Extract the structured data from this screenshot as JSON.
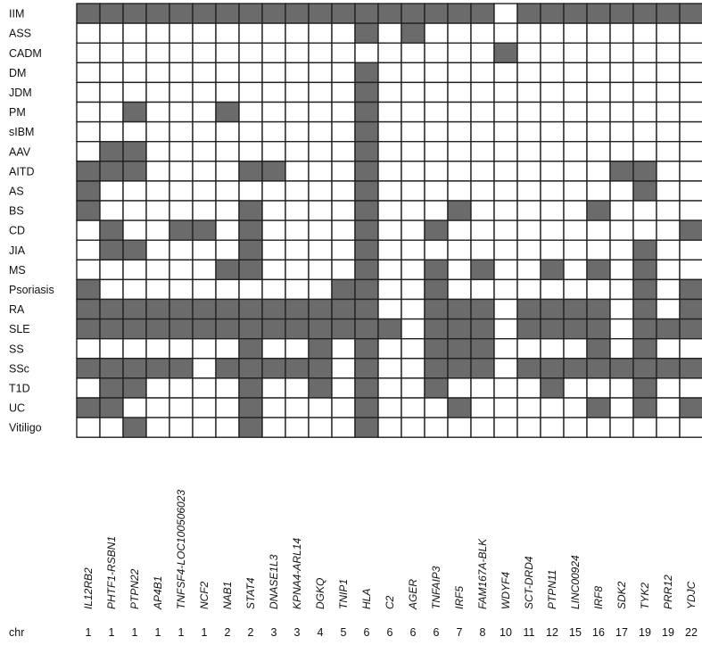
{
  "chart_data": {
    "type": "heatmap",
    "rows": [
      "IIM",
      "ASS",
      "CADM",
      "DM",
      "JDM",
      "PM",
      "sIBM",
      "AAV",
      "AITD",
      "AS",
      "BS",
      "CD",
      "JIA",
      "MS",
      "Psoriasis",
      "RA",
      "SLE",
      "SS",
      "SSc",
      "T1D",
      "UC",
      "Vitiligo"
    ],
    "columns": [
      "IL12RB2",
      "PHTF1-RSBN1",
      "PTPN22",
      "AP4B1",
      "TNFSF4-LOC100506023",
      "NCF2",
      "NAB1",
      "STAT4",
      "DNASE1L3",
      "KPNA4-ARL14",
      "DGKQ",
      "TNIP1",
      "HLA",
      "C2",
      "AGER",
      "TNFAIP3",
      "IRF5",
      "FAM167A-BLK",
      "WDYF4",
      "SCT-DRD4",
      "PTPN11",
      "LINC00924",
      "IRF8",
      "SDK2",
      "TYK2",
      "PRR12",
      "YDJC"
    ],
    "chr_header": "chr",
    "chr": [
      "1",
      "1",
      "1",
      "1",
      "1",
      "1",
      "2",
      "2",
      "3",
      "3",
      "4",
      "5",
      "6",
      "6",
      "6",
      "6",
      "7",
      "8",
      "10",
      "11",
      "12",
      "15",
      "16",
      "17",
      "19",
      "19",
      "22"
    ],
    "filled_color": "#6b6b6b",
    "empty_color": "#ffffff",
    "border_color": "#222222",
    "cells": [
      [
        1,
        1,
        1,
        1,
        1,
        1,
        1,
        1,
        1,
        1,
        1,
        1,
        1,
        1,
        1,
        1,
        1,
        1,
        0,
        1,
        1,
        1,
        1,
        1,
        1,
        1,
        1
      ],
      [
        0,
        0,
        0,
        0,
        0,
        0,
        0,
        0,
        0,
        0,
        0,
        0,
        1,
        0,
        1,
        0,
        0,
        0,
        0,
        0,
        0,
        0,
        0,
        0,
        0,
        0,
        0
      ],
      [
        0,
        0,
        0,
        0,
        0,
        0,
        0,
        0,
        0,
        0,
        0,
        0,
        0,
        0,
        0,
        0,
        0,
        0,
        1,
        0,
        0,
        0,
        0,
        0,
        0,
        0,
        0
      ],
      [
        0,
        0,
        0,
        0,
        0,
        0,
        0,
        0,
        0,
        0,
        0,
        0,
        1,
        0,
        0,
        0,
        0,
        0,
        0,
        0,
        0,
        0,
        0,
        0,
        0,
        0,
        0
      ],
      [
        0,
        0,
        0,
        0,
        0,
        0,
        0,
        0,
        0,
        0,
        0,
        0,
        1,
        0,
        0,
        0,
        0,
        0,
        0,
        0,
        0,
        0,
        0,
        0,
        0,
        0,
        0
      ],
      [
        0,
        0,
        1,
        0,
        0,
        0,
        1,
        0,
        0,
        0,
        0,
        0,
        1,
        0,
        0,
        0,
        0,
        0,
        0,
        0,
        0,
        0,
        0,
        0,
        0,
        0,
        0
      ],
      [
        0,
        0,
        0,
        0,
        0,
        0,
        0,
        0,
        0,
        0,
        0,
        0,
        1,
        0,
        0,
        0,
        0,
        0,
        0,
        0,
        0,
        0,
        0,
        0,
        0,
        0,
        0
      ],
      [
        0,
        1,
        1,
        0,
        0,
        0,
        0,
        0,
        0,
        0,
        0,
        0,
        1,
        0,
        0,
        0,
        0,
        0,
        0,
        0,
        0,
        0,
        0,
        0,
        0,
        0,
        0
      ],
      [
        1,
        1,
        1,
        0,
        0,
        0,
        0,
        1,
        1,
        0,
        0,
        0,
        1,
        0,
        0,
        0,
        0,
        0,
        0,
        0,
        0,
        0,
        0,
        1,
        1,
        0,
        0
      ],
      [
        1,
        0,
        0,
        0,
        0,
        0,
        0,
        0,
        0,
        0,
        0,
        0,
        1,
        0,
        0,
        0,
        0,
        0,
        0,
        0,
        0,
        0,
        0,
        0,
        1,
        0,
        0
      ],
      [
        1,
        0,
        0,
        0,
        0,
        0,
        0,
        1,
        0,
        0,
        0,
        0,
        1,
        0,
        0,
        0,
        1,
        0,
        0,
        0,
        0,
        0,
        1,
        0,
        0,
        0,
        0
      ],
      [
        0,
        1,
        0,
        0,
        1,
        1,
        0,
        1,
        0,
        0,
        0,
        0,
        1,
        0,
        0,
        1,
        0,
        0,
        0,
        0,
        0,
        0,
        0,
        0,
        0,
        0,
        1
      ],
      [
        0,
        1,
        1,
        0,
        0,
        0,
        0,
        1,
        0,
        0,
        0,
        0,
        1,
        0,
        0,
        0,
        0,
        0,
        0,
        0,
        0,
        0,
        0,
        0,
        1,
        0,
        0
      ],
      [
        0,
        0,
        0,
        0,
        0,
        0,
        1,
        1,
        0,
        0,
        0,
        0,
        1,
        0,
        0,
        1,
        0,
        1,
        0,
        0,
        1,
        0,
        1,
        0,
        1,
        0,
        0
      ],
      [
        1,
        0,
        0,
        0,
        0,
        0,
        0,
        0,
        0,
        0,
        0,
        1,
        1,
        0,
        0,
        1,
        0,
        0,
        0,
        0,
        0,
        0,
        0,
        0,
        1,
        0,
        1
      ],
      [
        1,
        1,
        1,
        1,
        1,
        1,
        1,
        1,
        1,
        1,
        1,
        1,
        1,
        0,
        0,
        1,
        1,
        1,
        0,
        1,
        1,
        1,
        1,
        0,
        1,
        0,
        1
      ],
      [
        1,
        1,
        1,
        1,
        1,
        1,
        1,
        1,
        1,
        1,
        1,
        1,
        1,
        1,
        0,
        1,
        1,
        1,
        0,
        1,
        1,
        1,
        1,
        0,
        1,
        1,
        1
      ],
      [
        0,
        0,
        0,
        0,
        0,
        0,
        0,
        1,
        0,
        0,
        1,
        0,
        1,
        0,
        0,
        1,
        1,
        1,
        0,
        0,
        0,
        0,
        1,
        0,
        1,
        0,
        0
      ],
      [
        1,
        1,
        1,
        1,
        1,
        0,
        1,
        1,
        1,
        1,
        1,
        0,
        1,
        0,
        0,
        1,
        1,
        1,
        0,
        1,
        1,
        1,
        1,
        1,
        1,
        1,
        1
      ],
      [
        0,
        1,
        1,
        0,
        0,
        0,
        0,
        1,
        0,
        0,
        1,
        0,
        1,
        0,
        0,
        1,
        0,
        0,
        0,
        0,
        1,
        0,
        0,
        0,
        1,
        0,
        0
      ],
      [
        1,
        1,
        0,
        0,
        0,
        0,
        0,
        1,
        0,
        0,
        0,
        0,
        1,
        0,
        0,
        0,
        1,
        0,
        0,
        0,
        0,
        0,
        1,
        0,
        1,
        0,
        1
      ],
      [
        0,
        0,
        1,
        0,
        0,
        0,
        0,
        1,
        0,
        0,
        0,
        0,
        1,
        0,
        0,
        0,
        0,
        0,
        0,
        0,
        0,
        0,
        0,
        0,
        0,
        0,
        0
      ]
    ]
  }
}
